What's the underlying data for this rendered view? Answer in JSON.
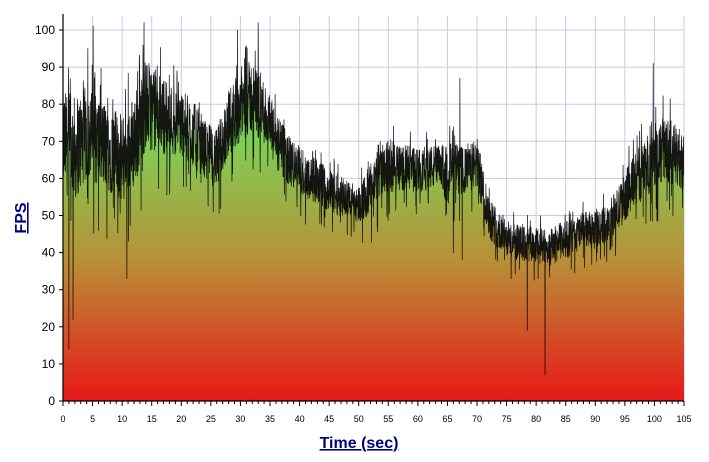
{
  "chart_data": {
    "type": "area",
    "title": "",
    "xlabel": "Time (sec)",
    "ylabel": "FPS",
    "xlim": [
      0,
      105
    ],
    "ylim": [
      0,
      100
    ],
    "x_ticks": [
      0,
      5,
      10,
      15,
      20,
      25,
      30,
      35,
      40,
      45,
      50,
      55,
      60,
      65,
      70,
      75,
      80,
      85,
      90,
      95,
      100,
      105
    ],
    "y_ticks": [
      0,
      10,
      20,
      30,
      40,
      50,
      60,
      70,
      80,
      90,
      100
    ],
    "grid": true,
    "colors": {
      "label": "#000080",
      "line": "#000000",
      "grid": "#c8c8ee",
      "fill_top": "#7fcf55",
      "fill_mid": "#b89038",
      "fill_bottom": "#e81818"
    },
    "series": [
      {
        "name": "FPS",
        "trend": {
          "x": [
            0,
            2,
            4,
            6,
            8,
            10,
            12,
            14,
            16,
            18,
            20,
            22,
            24,
            26,
            28,
            30,
            32,
            34,
            36,
            38,
            40,
            42,
            44,
            46,
            48,
            50,
            52,
            54,
            56,
            58,
            60,
            62,
            64,
            66,
            67,
            68,
            70,
            72,
            74,
            76,
            78,
            80,
            82,
            84,
            86,
            88,
            90,
            92,
            94,
            96,
            98,
            100,
            102,
            104,
            105
          ],
          "y": [
            70,
            68,
            72,
            70,
            68,
            65,
            70,
            80,
            78,
            76,
            75,
            72,
            68,
            65,
            75,
            80,
            82,
            78,
            70,
            65,
            62,
            60,
            58,
            56,
            55,
            53,
            57,
            64,
            63,
            63,
            62,
            63,
            63,
            63,
            62,
            62,
            64,
            50,
            45,
            43,
            42,
            42,
            41,
            43,
            44,
            46,
            46,
            48,
            52,
            58,
            62,
            66,
            68,
            66,
            64
          ],
          "amplitude": [
            14,
            14,
            13,
            12,
            12,
            12,
            13,
            12,
            11,
            10,
            9,
            9,
            8,
            8,
            9,
            10,
            10,
            9,
            8,
            7,
            7,
            6,
            6,
            6,
            5,
            5,
            7,
            8,
            7,
            6,
            6,
            6,
            6,
            7,
            7,
            6,
            7,
            6,
            5,
            5,
            5,
            5,
            5,
            5,
            5,
            5,
            5,
            5,
            6,
            7,
            8,
            9,
            9,
            8,
            8
          ]
        },
        "samples_per_second": 30,
        "spikes": [
          {
            "x": 1.0,
            "y": 14
          },
          {
            "x": 1.7,
            "y": 22
          },
          {
            "x": 4.2,
            "y": 95
          },
          {
            "x": 5.1,
            "y": 101
          },
          {
            "x": 10.8,
            "y": 33
          },
          {
            "x": 13.7,
            "y": 102
          },
          {
            "x": 29.5,
            "y": 100
          },
          {
            "x": 33.0,
            "y": 102
          },
          {
            "x": 66.0,
            "y": 40
          },
          {
            "x": 67.1,
            "y": 87
          },
          {
            "x": 67.5,
            "y": 38
          },
          {
            "x": 78.5,
            "y": 19
          },
          {
            "x": 81.5,
            "y": 7
          },
          {
            "x": 99.8,
            "y": 91
          }
        ]
      }
    ]
  }
}
